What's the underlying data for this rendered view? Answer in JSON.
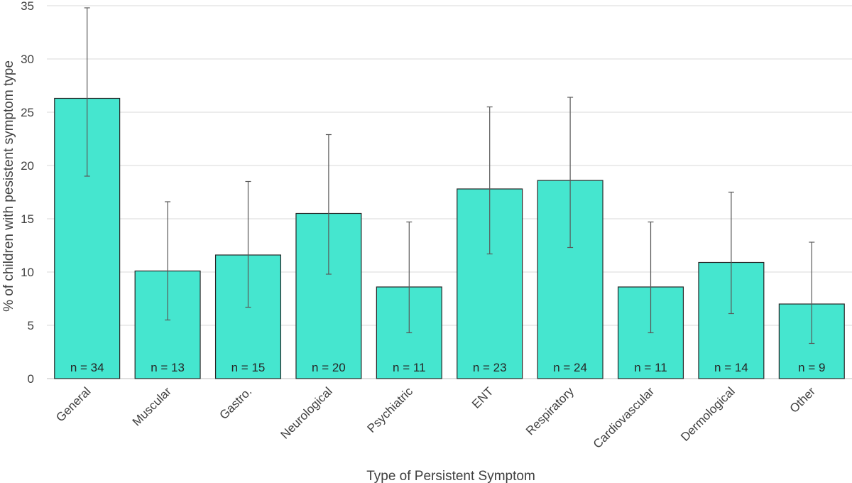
{
  "chart_data": {
    "type": "bar",
    "title": "",
    "xlabel": "Type of Persistent Symptom",
    "ylabel": "% of children with pesistent symptom type",
    "ylim": [
      0,
      35
    ],
    "yticks": [
      0,
      5,
      10,
      15,
      20,
      25,
      30,
      35
    ],
    "grid": true,
    "bar_color": "#45e6cf",
    "categories": [
      "General",
      "Muscular",
      "Gastro.",
      "Neurological",
      "Psychiatric",
      "ENT",
      "Respiratory",
      "Cardiovascular",
      "Dermological",
      "Other"
    ],
    "values": [
      26.3,
      10.1,
      11.6,
      15.5,
      8.6,
      17.8,
      18.6,
      8.6,
      10.9,
      7.0
    ],
    "error_low": [
      19.0,
      5.5,
      6.7,
      9.8,
      4.3,
      11.7,
      12.3,
      4.3,
      6.1,
      3.3
    ],
    "error_high": [
      34.8,
      16.6,
      18.5,
      22.9,
      14.7,
      25.5,
      26.4,
      14.7,
      17.5,
      12.8
    ],
    "n_labels": [
      "n = 34",
      "n = 13",
      "n = 15",
      "n = 20",
      "n = 11",
      "n = 23",
      "n = 24",
      "n = 11",
      "n = 14",
      "n = 9"
    ]
  }
}
